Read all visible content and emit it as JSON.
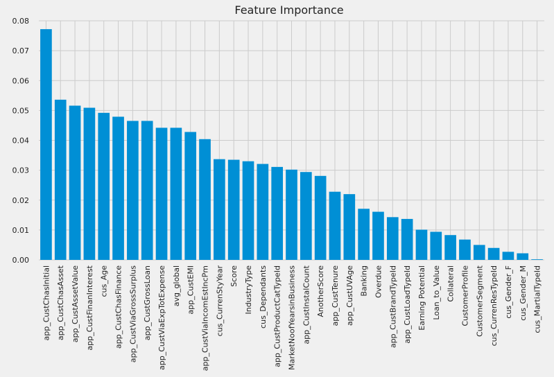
{
  "chart_data": {
    "type": "bar",
    "title": "Feature Importance",
    "xlabel": "",
    "ylabel": "",
    "ylim": [
      0,
      0.08
    ],
    "yticks": [
      0.0,
      0.01,
      0.02,
      0.03,
      0.04,
      0.05,
      0.06,
      0.07,
      0.08
    ],
    "grid": true,
    "bar_color": "#008fd5",
    "categories": [
      "app_CustChasInitial",
      "app_CustChasAsset",
      "app_CustAssetValue",
      "app_CustFinanInterest",
      "cus_Age",
      "app_CustChasFinance",
      "app_CustViaGrossSurplus",
      "app_CustGrossLoan",
      "app_CustViaExpTotExpense",
      "avg_global",
      "app_CustEMI",
      "app_CustViaIncomEstIncPm",
      "cus_CurrenStyYear",
      "Score",
      "IndustryType",
      "cus_Dependants",
      "app_CustProductCatTypeId",
      "MarketNoofYearsinBusiness",
      "app_CustInstalCount",
      "AnotherScore",
      "app_CustTenure",
      "app_CustUVAge",
      "Banking",
      "Overdue",
      "app_CustBrandTypeId",
      "app_CustLoadTypeId",
      "Earning Potential",
      "Loan_to_Value",
      "Collateral",
      "CustomerProfile",
      "CustomerSegment",
      "cus_CurrenResTypeId",
      "cus_Gender_F",
      "cus_Gender_M",
      "cus_MartialTypeId"
    ],
    "values": [
      0.0772,
      0.0536,
      0.0516,
      0.0509,
      0.0492,
      0.0479,
      0.0465,
      0.0465,
      0.0442,
      0.0442,
      0.0428,
      0.0404,
      0.0337,
      0.0335,
      0.033,
      0.0321,
      0.0311,
      0.0302,
      0.0294,
      0.0281,
      0.0228,
      0.022,
      0.0171,
      0.0161,
      0.0143,
      0.0137,
      0.0101,
      0.0094,
      0.0083,
      0.0068,
      0.005,
      0.004,
      0.0027,
      0.0022,
      0.0002
    ]
  }
}
